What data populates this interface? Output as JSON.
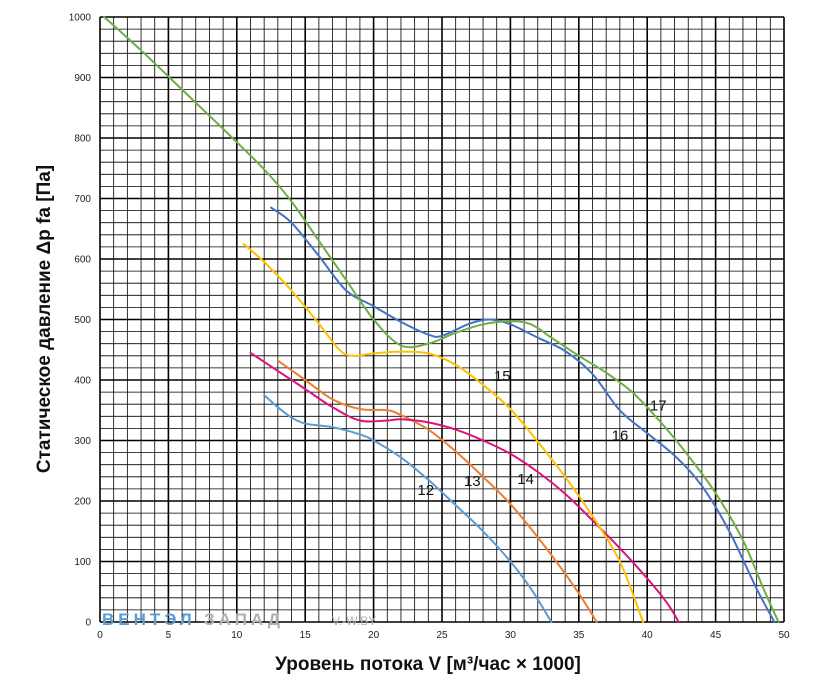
{
  "chart_data": {
    "type": "line",
    "title": "",
    "xlabel": "Уровень потока V [м³/час × 1000]",
    "ylabel": "Статическое давление Δp fa [Па]",
    "xlim": [
      0,
      50
    ],
    "ylim": [
      0,
      1000
    ],
    "x_ticks": [
      "0",
      "5",
      "10",
      "15",
      "20",
      "25",
      "30",
      "35",
      "40",
      "45",
      "50"
    ],
    "y_ticks": [
      "0",
      "100",
      "200",
      "300",
      "400",
      "500",
      "600",
      "700",
      "800",
      "900",
      "1000"
    ],
    "grid": true,
    "legend": "none",
    "series": [
      {
        "name": "12",
        "color": "#5b9bd5",
        "label_at": [
          23.2,
          210
        ],
        "points": [
          [
            12,
            375
          ],
          [
            13,
            355
          ],
          [
            14,
            338
          ],
          [
            15,
            328
          ],
          [
            17,
            322
          ],
          [
            19,
            310
          ],
          [
            20,
            300
          ],
          [
            22,
            272
          ],
          [
            24,
            235
          ],
          [
            26,
            193
          ],
          [
            28,
            150
          ],
          [
            30,
            100
          ],
          [
            31.5,
            55
          ],
          [
            33,
            0
          ]
        ]
      },
      {
        "name": "13",
        "color": "#ed7d31",
        "label_at": [
          26.6,
          225
        ],
        "points": [
          [
            13,
            432
          ],
          [
            15,
            400
          ],
          [
            17,
            368
          ],
          [
            19,
            352
          ],
          [
            21,
            350
          ],
          [
            22,
            342
          ],
          [
            24,
            318
          ],
          [
            26,
            282
          ],
          [
            28,
            240
          ],
          [
            30,
            195
          ],
          [
            32,
            140
          ],
          [
            34,
            80
          ],
          [
            35.5,
            30
          ],
          [
            36.3,
            0
          ]
        ]
      },
      {
        "name": "14",
        "color": "#e0127a",
        "label_at": [
          30.5,
          228
        ],
        "points": [
          [
            11,
            445
          ],
          [
            13,
            415
          ],
          [
            15,
            385
          ],
          [
            17,
            355
          ],
          [
            19,
            333
          ],
          [
            21,
            333
          ],
          [
            22,
            335
          ],
          [
            24,
            330
          ],
          [
            26,
            318
          ],
          [
            28,
            300
          ],
          [
            30,
            278
          ],
          [
            32,
            248
          ],
          [
            34,
            212
          ],
          [
            36,
            168
          ],
          [
            38,
            122
          ],
          [
            40,
            72
          ],
          [
            41.5,
            30
          ],
          [
            42.3,
            0
          ]
        ]
      },
      {
        "name": "15",
        "color": "#ffc000",
        "label_at": [
          28.8,
          398
        ],
        "points": [
          [
            10.5,
            625
          ],
          [
            12,
            595
          ],
          [
            14,
            548
          ],
          [
            16,
            493
          ],
          [
            17.5,
            450
          ],
          [
            18.5,
            440
          ],
          [
            20,
            444
          ],
          [
            22,
            447
          ],
          [
            24,
            444
          ],
          [
            26,
            425
          ],
          [
            28,
            392
          ],
          [
            30,
            352
          ],
          [
            32,
            298
          ],
          [
            34,
            240
          ],
          [
            36,
            175
          ],
          [
            38,
            100
          ],
          [
            39.7,
            0
          ]
        ]
      },
      {
        "name": "16",
        "color": "#4472c4",
        "label_at": [
          37.4,
          300
        ],
        "points": [
          [
            12.5,
            685
          ],
          [
            14,
            660
          ],
          [
            16,
            605
          ],
          [
            18,
            548
          ],
          [
            20,
            522
          ],
          [
            22,
            496
          ],
          [
            24,
            475
          ],
          [
            25,
            473
          ],
          [
            27,
            493
          ],
          [
            28.5,
            500
          ],
          [
            30,
            492
          ],
          [
            32,
            470
          ],
          [
            34,
            448
          ],
          [
            36,
            410
          ],
          [
            38,
            350
          ],
          [
            40,
            312
          ],
          [
            42,
            275
          ],
          [
            44,
            225
          ],
          [
            46,
            150
          ],
          [
            48,
            55
          ],
          [
            49.3,
            0
          ]
        ]
      },
      {
        "name": "17",
        "color": "#70ad47",
        "label_at": [
          40.2,
          350
        ],
        "points": [
          [
            0.3,
            1000
          ],
          [
            3,
            945
          ],
          [
            6,
            880
          ],
          [
            9,
            815
          ],
          [
            12,
            748
          ],
          [
            14,
            695
          ],
          [
            16,
            630
          ],
          [
            18,
            565
          ],
          [
            20,
            500
          ],
          [
            22,
            457
          ],
          [
            24,
            460
          ],
          [
            26,
            478
          ],
          [
            28,
            492
          ],
          [
            30,
            497
          ],
          [
            31.5,
            492
          ],
          [
            33,
            470
          ],
          [
            35,
            440
          ],
          [
            37,
            412
          ],
          [
            39,
            378
          ],
          [
            41,
            330
          ],
          [
            43,
            275
          ],
          [
            45,
            213
          ],
          [
            47,
            135
          ],
          [
            48.5,
            55
          ],
          [
            49.6,
            0
          ]
        ]
      }
    ]
  },
  "watermark": {
    "part1": "ВЕНТЭЛ",
    "part2": "ЗАПАД",
    "suffix": "V.-W.BY",
    "color1": "#5b9bd5",
    "color2": "#b0b0b0"
  }
}
